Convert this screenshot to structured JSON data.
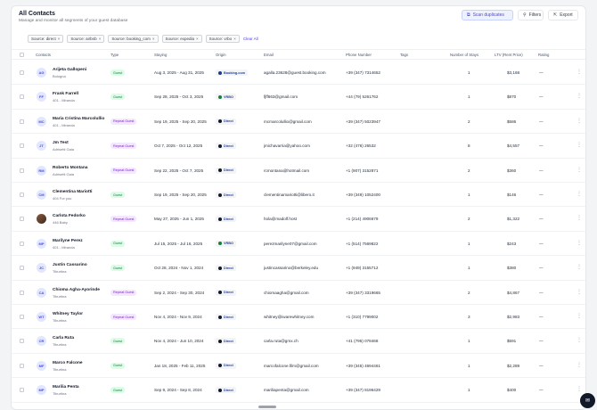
{
  "header": {
    "title": "All Contacts",
    "subtitle": "Manage and monitor all segments of your guest database",
    "scan_label": "Scan duplicates",
    "filters_label": "Filters",
    "export_label": "Export"
  },
  "chips": [
    {
      "label": "Source: direct"
    },
    {
      "label": "Source: airbnb"
    },
    {
      "label": "Source: booking_com"
    },
    {
      "label": "Source: expedia"
    },
    {
      "label": "Source: vrbo"
    }
  ],
  "clear_all": "Clear All",
  "columns": {
    "contacts": "Contacts",
    "type": "Type",
    "staying": "Staying",
    "origin": "Origin",
    "email": "Email",
    "phone": "Phone Number",
    "tags": "Tags",
    "stays": "Number of Stays",
    "ltv": "LTV (Rent Price)",
    "rating": "Rating"
  },
  "rows": [
    {
      "initials": "AG",
      "name": "Arijeta Gallopeni",
      "location": "Bologna",
      "type": "Guest",
      "type_kind": "guest",
      "staying": "Aug 3, 2025 - Aug 31, 2025",
      "origin": "Booking.com",
      "origin_kind": "booking",
      "email": "agalla.23628@guest.booking.com",
      "phone": "+39 (347) 7314652",
      "stays": "1",
      "ltv": "$3,168",
      "rating": "—"
    },
    {
      "initials": "FF",
      "name": "Frank Farrell",
      "location": "401 - Miranda",
      "type": "Guest",
      "type_kind": "guest",
      "staying": "Sep 28, 2025 - Oct 3, 2025",
      "origin": "VRBO",
      "origin_kind": "vrbo",
      "email": "fjff663@gmail.com",
      "phone": "+44 (79) 5261762",
      "stays": "1",
      "ltv": "$870",
      "rating": "—"
    },
    {
      "initials": "MC",
      "name": "Maria Cristina Marcolullio",
      "location": "401 - Miranda",
      "type": "Repeat Guest",
      "type_kind": "repeat",
      "staying": "Sep 19, 2025 - Sep 20, 2025",
      "origin": "Direct",
      "origin_kind": "direct",
      "email": "mcmarcolullio@gmail.com",
      "phone": "+39 (347) 5023947",
      "stays": "2",
      "ltv": "$586",
      "rating": "—"
    },
    {
      "initials": "JT",
      "name": "Jm Test",
      "location": "Adrisetti Gaia",
      "type": "Repeat Guest",
      "type_kind": "repeat",
      "staying": "Oct 7, 2025 - Oct 12, 2025",
      "origin": "Direct",
      "origin_kind": "direct",
      "email": "jmichavarria@yahoo.com",
      "phone": "+32 (476) 26532",
      "stays": "8",
      "ltv": "$4,557",
      "rating": "—"
    },
    {
      "initials": "RM",
      "name": "Roberto Montana",
      "location": "Adrisetti Gaia",
      "type": "Repeat Guest",
      "type_kind": "repeat",
      "staying": "Sep 22, 2025 - Oct 7, 2025",
      "origin": "Direct",
      "origin_kind": "direct",
      "email": "rcmontana@hotmail.com",
      "phone": "+1 (907) 3152871",
      "stays": "2",
      "ltv": "$360",
      "rating": "—"
    },
    {
      "initials": "CM",
      "name": "Clementina Mariotti",
      "location": "404 For you",
      "type": "Guest",
      "type_kind": "guest",
      "staying": "Sep 19, 2025 - Sep 20, 2025",
      "origin": "Direct",
      "origin_kind": "direct",
      "email": "clementinamariotti@libero.it",
      "phone": "+39 (349) 1052400",
      "stays": "1",
      "ltv": "$146",
      "rating": "—"
    },
    {
      "initials": "",
      "name": "Carlota Fedorko",
      "location": "446 Baby",
      "type": "Repeat Guest",
      "type_kind": "repeat",
      "staying": "May 27, 2025 - Jun 1, 2025",
      "origin": "Direct",
      "origin_kind": "direct",
      "email": "hola@madolf.host",
      "phone": "+1 (214) 4906679",
      "stays": "2",
      "ltv": "$1,322",
      "rating": "—"
    },
    {
      "initials": "MP",
      "name": "Marilyne Perez",
      "location": "401 - Miranda",
      "type": "Guest",
      "type_kind": "guest",
      "staying": "Jul 15, 2025 - Jul 16, 2025",
      "origin": "VRBO",
      "origin_kind": "vrbo",
      "email": "perezmarilyne07@gmail.com",
      "phone": "+1 (514) 7569822",
      "stays": "1",
      "ltv": "$243",
      "rating": "—"
    },
    {
      "initials": "JC",
      "name": "Justin Cassarino",
      "location": "Tiburtina",
      "type": "Guest",
      "type_kind": "guest",
      "staying": "Oct 28, 2024 - Nov 1, 2024",
      "origin": "Direct",
      "origin_kind": "direct",
      "email": "justincassarino@berkeley.edu",
      "phone": "+1 (949) 3155712",
      "stays": "1",
      "ltv": "$380",
      "rating": "—"
    },
    {
      "initials": "CA",
      "name": "Chioma Agha-Ayorinde",
      "location": "Tiburtina",
      "type": "Repeat Guest",
      "type_kind": "repeat",
      "staying": "Sep 2, 2024 - Sep 30, 2024",
      "origin": "Direct",
      "origin_kind": "direct",
      "email": "chiomaagha@gmail.com",
      "phone": "+39 (347) 3319665",
      "stays": "2",
      "ltv": "$4,867",
      "rating": "—"
    },
    {
      "initials": "WT",
      "name": "Whitney Taylor",
      "location": "Tiburtina",
      "type": "Repeat Guest",
      "type_kind": "repeat",
      "staying": "Nov 4, 2024 - Nov 9, 2024",
      "origin": "Direct",
      "origin_kind": "direct",
      "email": "whitney@iwarewhitney.com",
      "phone": "+1 (310) 7799002",
      "stays": "3",
      "ltv": "$2,983",
      "rating": "—"
    },
    {
      "initials": "CR",
      "name": "Carla Ruta",
      "location": "Tiburtina",
      "type": "Guest",
      "type_kind": "guest",
      "staying": "Nov 4, 2024 - Jun 10, 2024",
      "origin": "Direct",
      "origin_kind": "direct",
      "email": "carla.ruta@gmx.ch",
      "phone": "+41 (795) 078468",
      "stays": "1",
      "ltv": "$591",
      "rating": "—"
    },
    {
      "initials": "MF",
      "name": "Marco Falcone",
      "location": "Tiburtina",
      "type": "Guest",
      "type_kind": "guest",
      "staying": "Jan 18, 2025 - Feb 11, 2025",
      "origin": "Direct",
      "origin_kind": "direct",
      "email": "marcofalcone.film@gmail.com",
      "phone": "+39 (345) 4694461",
      "stays": "1",
      "ltv": "$2,289",
      "rating": "—"
    },
    {
      "initials": "MP",
      "name": "Marilia Penta",
      "location": "Tiburtina",
      "type": "Guest",
      "type_kind": "guest",
      "staying": "Sep 9, 2024 - Sep 8, 2024",
      "origin": "Direct",
      "origin_kind": "direct",
      "email": "mariliapenta@gmail.com",
      "phone": "+39 (347) 8196429",
      "stays": "1",
      "ltv": "$400",
      "rating": "—"
    }
  ],
  "icons": {
    "scan": "copy-icon",
    "filters": "filter-icon",
    "export": "export-icon",
    "chat": "chat-icon"
  },
  "colors": {
    "accent": "#4f46e5",
    "guest_badge": "#dcfce7",
    "repeat_badge": "#f3e8ff"
  }
}
